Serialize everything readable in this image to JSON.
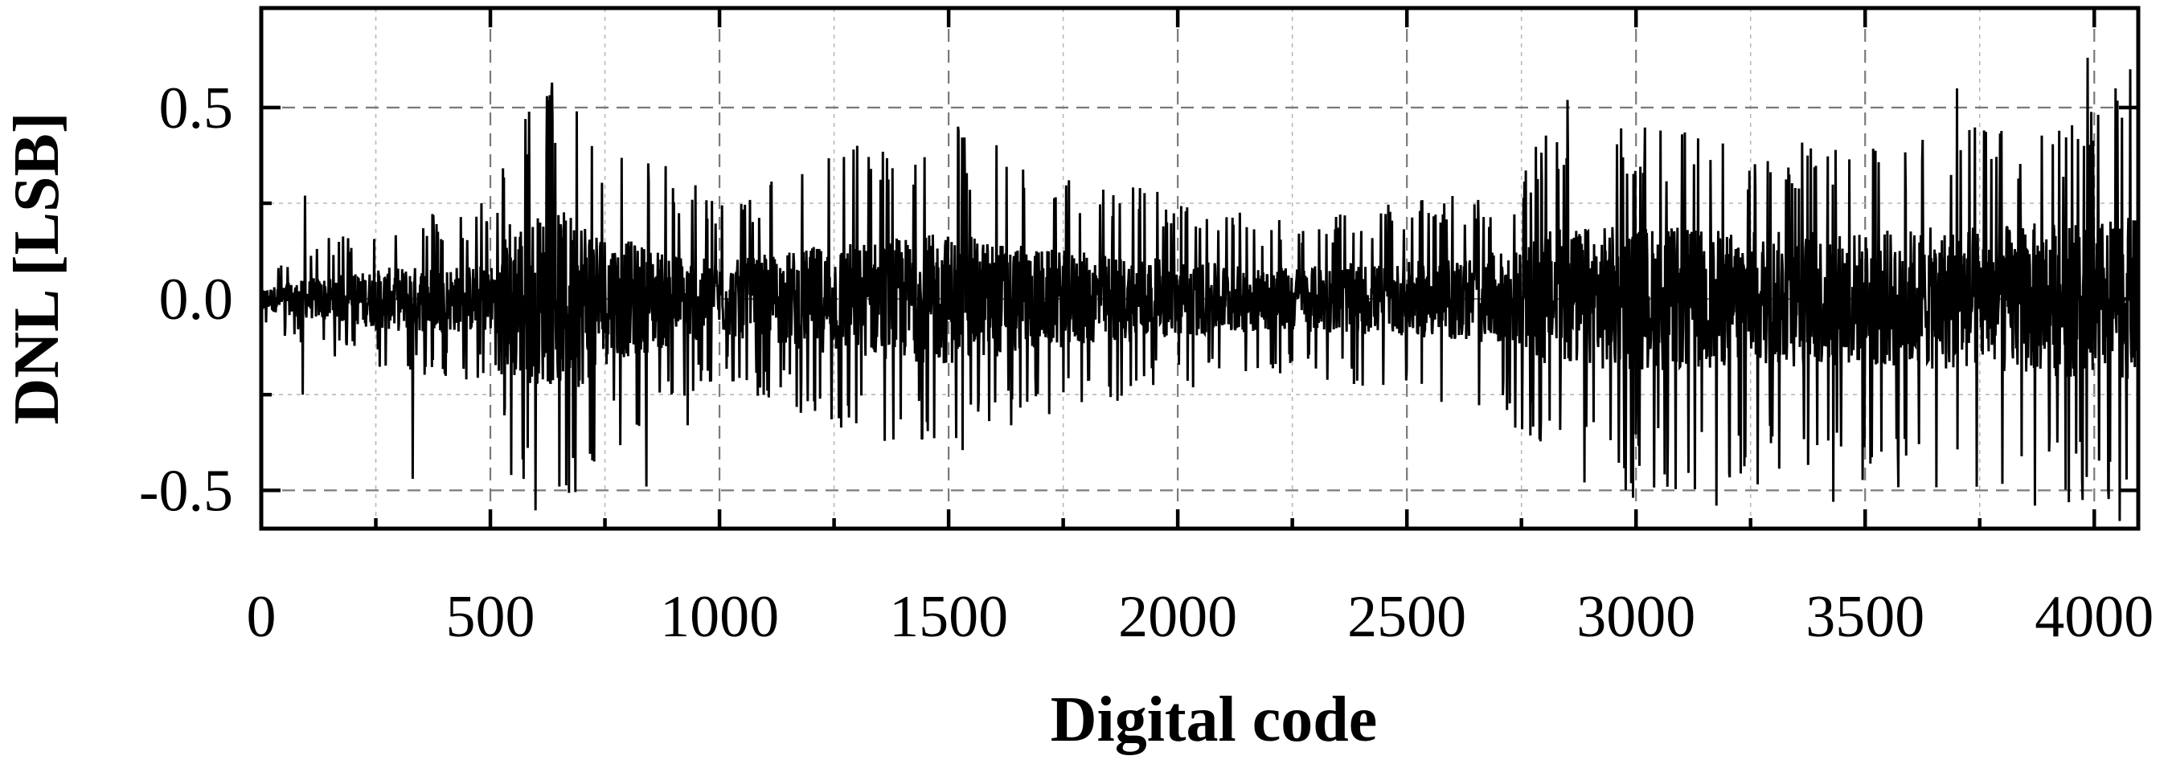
{
  "chart_data": {
    "type": "line",
    "title": "",
    "xlabel": "Digital code",
    "ylabel": "DNL [LSB]",
    "xlim": [
      0,
      4096
    ],
    "ylim": [
      -0.6,
      0.76
    ],
    "x_ticks": [
      0,
      500,
      1000,
      1500,
      2000,
      2500,
      3000,
      3500,
      4000
    ],
    "x_tick_labels": [
      "0",
      "500",
      "1000",
      "1500",
      "2000",
      "2500",
      "3000",
      "3500",
      "4000"
    ],
    "x_minor_ticks": [
      250,
      750,
      1250,
      1750,
      2250,
      2750,
      3250,
      3750
    ],
    "y_ticks": [
      -0.5,
      0.0,
      0.5
    ],
    "y_tick_labels": [
      "-0.5",
      "0.0",
      "0.5"
    ],
    "y_minor_ticks": [
      -0.25,
      0.25
    ],
    "grid": true,
    "legend": "none",
    "series_color": "#000000",
    "num_codes": 4096,
    "envelope": {
      "description_x": [
        0,
        100,
        300,
        520,
        540,
        700,
        760,
        1000,
        1250,
        1500,
        1700,
        2000,
        2200,
        2500,
        2750,
        2800,
        3000,
        3200,
        3500,
        3800,
        4096
      ],
      "upper": [
        0.05,
        0.1,
        0.16,
        0.17,
        0.4,
        0.42,
        0.3,
        0.2,
        0.28,
        0.33,
        0.26,
        0.2,
        0.15,
        0.18,
        0.22,
        0.33,
        0.33,
        0.3,
        0.3,
        0.33,
        0.38
      ],
      "lower": [
        -0.05,
        -0.09,
        -0.15,
        -0.16,
        -0.4,
        -0.42,
        -0.3,
        -0.15,
        -0.25,
        -0.3,
        -0.22,
        -0.17,
        -0.15,
        -0.17,
        -0.25,
        -0.33,
        -0.38,
        -0.35,
        -0.35,
        -0.38,
        -0.4
      ]
    },
    "spikes": [
      {
        "x": 90,
        "y": -0.25
      },
      {
        "x": 95,
        "y": 0.27
      },
      {
        "x": 330,
        "y": -0.47
      },
      {
        "x": 480,
        "y": 0.25
      },
      {
        "x": 545,
        "y": -0.46
      },
      {
        "x": 633,
        "y": 0.54
      },
      {
        "x": 650,
        "y": -0.49
      },
      {
        "x": 688,
        "y": 0.49
      },
      {
        "x": 840,
        "y": -0.49
      },
      {
        "x": 930,
        "y": -0.33
      },
      {
        "x": 1300,
        "y": 0.4
      },
      {
        "x": 1520,
        "y": 0.45
      },
      {
        "x": 2850,
        "y": 0.52
      },
      {
        "x": 3100,
        "y": 0.43
      },
      {
        "x": 3175,
        "y": -0.54
      },
      {
        "x": 3430,
        "y": -0.53
      },
      {
        "x": 3700,
        "y": 0.55
      },
      {
        "x": 3870,
        "y": -0.54
      },
      {
        "x": 3985,
        "y": 0.63
      },
      {
        "x": 4030,
        "y": -0.5
      },
      {
        "x": 4046,
        "y": 0.55
      },
      {
        "x": 4055,
        "y": -0.58
      },
      {
        "x": 4078,
        "y": 0.6
      }
    ]
  }
}
